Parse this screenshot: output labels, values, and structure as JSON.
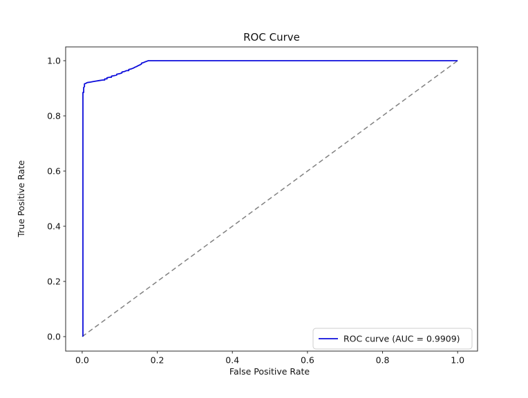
{
  "chart_data": {
    "type": "line",
    "title": "ROC Curve",
    "xlabel": "False Positive Rate",
    "ylabel": "True Positive Rate",
    "xlim": [
      -0.044,
      1.053
    ],
    "ylim": [
      -0.0525,
      1.05
    ],
    "xticks": [
      0.0,
      0.2,
      0.4,
      0.6,
      0.8,
      1.0
    ],
    "yticks": [
      0.0,
      0.2,
      0.4,
      0.6,
      0.8,
      1.0
    ],
    "grid": false,
    "auc": 0.9909,
    "legend": {
      "position": "lower right",
      "entries": [
        {
          "label": "ROC curve (AUC = 0.9909)",
          "color": "#0b0bdb",
          "dash": "solid"
        }
      ]
    },
    "colors": {
      "roc_line": "#0b0bdb",
      "chance_line": "#808080",
      "axis": "#2a2a2a",
      "text": "#111111",
      "legend_border": "#cccccc",
      "background": "#ffffff"
    },
    "series": [
      {
        "name": "roc-curve",
        "color": "#0b0bdb",
        "dash": "solid",
        "width": 1.8,
        "points": [
          [
            0.002,
            0.0
          ],
          [
            0.002,
            0.885
          ],
          [
            0.004,
            0.885
          ],
          [
            0.004,
            0.903
          ],
          [
            0.006,
            0.906
          ],
          [
            0.006,
            0.916
          ],
          [
            0.01,
            0.918
          ],
          [
            0.014,
            0.921
          ],
          [
            0.02,
            0.922
          ],
          [
            0.028,
            0.924
          ],
          [
            0.036,
            0.926
          ],
          [
            0.045,
            0.928
          ],
          [
            0.055,
            0.93
          ],
          [
            0.06,
            0.93
          ],
          [
            0.06,
            0.934
          ],
          [
            0.066,
            0.934
          ],
          [
            0.066,
            0.938
          ],
          [
            0.073,
            0.94
          ],
          [
            0.078,
            0.94
          ],
          [
            0.078,
            0.944
          ],
          [
            0.086,
            0.946
          ],
          [
            0.092,
            0.948
          ],
          [
            0.092,
            0.951
          ],
          [
            0.1,
            0.953
          ],
          [
            0.106,
            0.956
          ],
          [
            0.106,
            0.959
          ],
          [
            0.113,
            0.961
          ],
          [
            0.118,
            0.964
          ],
          [
            0.124,
            0.964
          ],
          [
            0.124,
            0.968
          ],
          [
            0.13,
            0.97
          ],
          [
            0.136,
            0.973
          ],
          [
            0.14,
            0.976
          ],
          [
            0.145,
            0.979
          ],
          [
            0.149,
            0.982
          ],
          [
            0.154,
            0.985
          ],
          [
            0.158,
            0.988
          ],
          [
            0.158,
            0.991
          ],
          [
            0.163,
            0.993
          ],
          [
            0.168,
            0.996
          ],
          [
            0.172,
            0.998
          ],
          [
            0.176,
            1.0
          ],
          [
            1.0,
            1.0
          ]
        ]
      },
      {
        "name": "chance-diagonal",
        "color": "#808080",
        "dash": "dashed",
        "width": 1.5,
        "points": [
          [
            0.0,
            0.0
          ],
          [
            1.0,
            1.0
          ]
        ]
      }
    ]
  }
}
